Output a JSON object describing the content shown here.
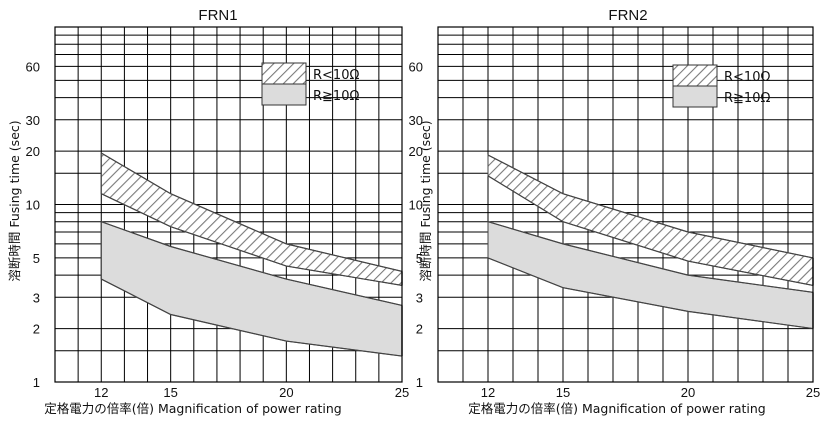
{
  "chart_data": [
    {
      "type": "area",
      "title": "FRN1",
      "xlabel": "定格電力の倍率(倍) Magnification of power rating",
      "ylabel": "溶断時間 Fusing time (sec)",
      "x_ticks": [
        12,
        15,
        20,
        25
      ],
      "y_ticks": [
        1,
        2,
        3,
        5,
        10,
        20,
        30,
        60
      ],
      "xlim": [
        10,
        25
      ],
      "ylim": [
        1,
        100
      ],
      "y_scale": "log",
      "grid": true,
      "legend_position": "top-right",
      "series": [
        {
          "name": "R<10Ω",
          "x": [
            12,
            15,
            20,
            25
          ],
          "upper": [
            19.5,
            11.5,
            6.0,
            4.2
          ],
          "lower": [
            11.5,
            7.5,
            4.5,
            3.5
          ]
        },
        {
          "name": "R≧10Ω",
          "x": [
            12,
            15,
            20,
            25
          ],
          "upper": [
            8.0,
            5.8,
            3.8,
            2.7
          ],
          "lower": [
            3.8,
            2.4,
            1.7,
            1.4
          ]
        }
      ],
      "extra_lines": [
        {
          "x": [
            12,
            15,
            20,
            25
          ],
          "y": [
            11.5,
            7.5,
            4.5,
            3.5
          ]
        },
        {
          "x": [
            12,
            15,
            20,
            25
          ],
          "y": [
            8.0,
            5.8,
            3.8,
            2.7
          ]
        }
      ]
    },
    {
      "type": "area",
      "title": "FRN2",
      "xlabel": "定格電力の倍率(倍) Magnification of power rating",
      "ylabel": "溶断時間 Fusing time (sec)",
      "x_ticks": [
        12,
        15,
        20,
        25
      ],
      "y_ticks": [
        1,
        2,
        3,
        5,
        10,
        20,
        30,
        60
      ],
      "xlim": [
        10,
        25
      ],
      "ylim": [
        1,
        100
      ],
      "y_scale": "log",
      "grid": true,
      "legend_position": "top-right",
      "series": [
        {
          "name": "R<10Ω",
          "x": [
            12,
            15,
            20,
            25
          ],
          "upper": [
            19.0,
            11.5,
            7.0,
            5.0
          ],
          "lower": [
            14.5,
            8.0,
            4.8,
            3.5
          ]
        },
        {
          "name": "R≧10Ω",
          "x": [
            12,
            15,
            20,
            25
          ],
          "upper": [
            8.0,
            6.0,
            4.0,
            3.2
          ],
          "lower": [
            5.0,
            3.4,
            2.5,
            2.0
          ]
        }
      ],
      "extra_lines": [
        {
          "x": [
            12,
            15,
            20,
            25
          ],
          "y": [
            14.5,
            8.0,
            4.8,
            3.5
          ]
        },
        {
          "x": [
            12,
            15,
            20,
            25
          ],
          "y": [
            8.0,
            6.0,
            4.0,
            3.2
          ]
        }
      ]
    }
  ],
  "colors": {
    "hatch": "#7a7a7a",
    "fill": "#dcdcdc",
    "line": "#444444",
    "grid": "#000000"
  }
}
